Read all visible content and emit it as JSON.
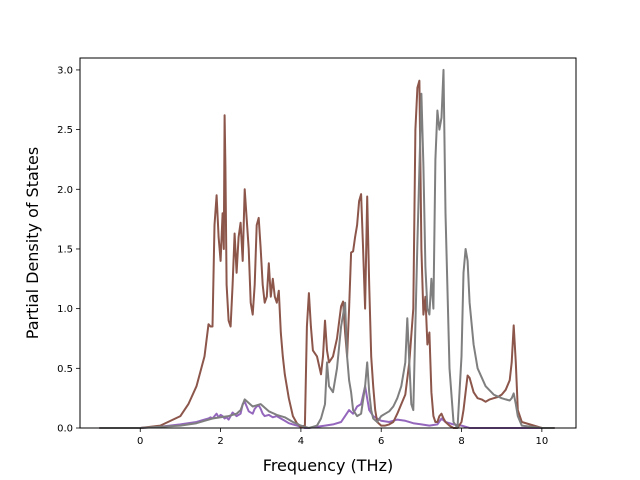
{
  "chart_data": {
    "type": "line",
    "title": "",
    "xlabel": "Frequency (THz)",
    "ylabel": "Partial Density of States",
    "xlim": [
      -1.5,
      10.85
    ],
    "ylim": [
      0,
      3.1
    ],
    "xticks": [
      0,
      2,
      4,
      6,
      8,
      10
    ],
    "xtick_labels": [
      "0",
      "2",
      "4",
      "6",
      "8",
      "10"
    ],
    "yticks": [
      0,
      0.5,
      1,
      1.5,
      2,
      2.5,
      3
    ],
    "ytick_labels": [
      "0.0",
      "0.5",
      "1.0",
      "1.5",
      "2.0",
      "2.5",
      "3.0"
    ],
    "grid": false,
    "legend": "none",
    "series": [
      {
        "color": "#9467bd",
        "x": [
          -1.0,
          0.0,
          0.5,
          1.0,
          1.4,
          1.6,
          1.7,
          1.75,
          1.8,
          1.85,
          1.9,
          1.95,
          2.0,
          2.05,
          2.1,
          2.15,
          2.2,
          2.25,
          2.3,
          2.4,
          2.5,
          2.55,
          2.6,
          2.65,
          2.7,
          2.8,
          2.85,
          2.9,
          2.95,
          3.0,
          3.05,
          3.1,
          3.2,
          3.3,
          3.4,
          3.5,
          3.6,
          3.7,
          3.8,
          3.9,
          4.0,
          4.1,
          4.2,
          4.4,
          4.6,
          4.8,
          5.0,
          5.1,
          5.2,
          5.3,
          5.4,
          5.5,
          5.6,
          5.7,
          5.8,
          6.0,
          6.2,
          6.4,
          6.6,
          6.8,
          7.0,
          7.2,
          7.4,
          7.5,
          7.6,
          7.8,
          8.0,
          8.2,
          8.4,
          8.6,
          8.8,
          9.0,
          9.2,
          9.3,
          9.4,
          9.6,
          10.0,
          10.3
        ],
        "values": [
          0,
          0,
          0.01,
          0.03,
          0.05,
          0.07,
          0.08,
          0.09,
          0.08,
          0.1,
          0.12,
          0.09,
          0.11,
          0.1,
          0.08,
          0.09,
          0.07,
          0.1,
          0.13,
          0.1,
          0.12,
          0.2,
          0.22,
          0.18,
          0.14,
          0.12,
          0.16,
          0.18,
          0.19,
          0.16,
          0.12,
          0.1,
          0.11,
          0.09,
          0.1,
          0.08,
          0.06,
          0.04,
          0.03,
          0.02,
          0.01,
          0.0,
          0.0,
          0.01,
          0.02,
          0.03,
          0.05,
          0.1,
          0.15,
          0.12,
          0.18,
          0.2,
          0.35,
          0.15,
          0.1,
          0.06,
          0.05,
          0.07,
          0.06,
          0.04,
          0.03,
          0.02,
          0.03,
          0.08,
          0.05,
          0.03,
          0.02,
          0.0,
          0.0,
          0.0,
          0.0,
          0.0,
          0.0,
          0.0,
          0.0,
          0.0,
          0.0,
          0.0
        ]
      },
      {
        "color": "#8c564b",
        "x": [
          -1.0,
          0.0,
          0.5,
          1.0,
          1.2,
          1.4,
          1.6,
          1.7,
          1.75,
          1.8,
          1.85,
          1.9,
          1.95,
          2.0,
          2.05,
          2.08,
          2.1,
          2.12,
          2.15,
          2.2,
          2.25,
          2.3,
          2.35,
          2.4,
          2.45,
          2.5,
          2.55,
          2.6,
          2.65,
          2.7,
          2.75,
          2.8,
          2.85,
          2.9,
          2.95,
          3.0,
          3.05,
          3.1,
          3.15,
          3.2,
          3.25,
          3.3,
          3.35,
          3.4,
          3.45,
          3.5,
          3.55,
          3.6,
          3.7,
          3.8,
          3.9,
          4.0,
          4.1,
          4.15,
          4.2,
          4.25,
          4.3,
          4.4,
          4.5,
          4.55,
          4.6,
          4.65,
          4.7,
          4.8,
          4.9,
          5.0,
          5.05,
          5.1,
          5.15,
          5.2,
          5.25,
          5.3,
          5.35,
          5.4,
          5.45,
          5.5,
          5.55,
          5.6,
          5.65,
          5.7,
          5.75,
          5.8,
          5.85,
          5.9,
          6.0,
          6.1,
          6.2,
          6.3,
          6.4,
          6.5,
          6.6,
          6.7,
          6.8,
          6.85,
          6.9,
          6.95,
          7.0,
          7.05,
          7.1,
          7.15,
          7.2,
          7.25,
          7.3,
          7.35,
          7.4,
          7.45,
          7.5,
          7.55,
          7.6,
          7.7,
          7.8,
          7.9,
          8.0,
          8.05,
          8.1,
          8.15,
          8.2,
          8.3,
          8.4,
          8.5,
          8.6,
          8.7,
          8.8,
          8.9,
          9.0,
          9.1,
          9.2,
          9.25,
          9.3,
          9.35,
          9.4,
          9.5,
          10.0,
          10.3
        ],
        "values": [
          0,
          0,
          0.02,
          0.1,
          0.2,
          0.35,
          0.6,
          0.87,
          0.85,
          0.85,
          1.7,
          1.95,
          1.6,
          1.4,
          1.8,
          1.5,
          2.62,
          2.2,
          1.2,
          0.9,
          0.85,
          1.2,
          1.63,
          1.3,
          1.6,
          1.72,
          1.4,
          2.0,
          1.75,
          1.5,
          1.05,
          0.95,
          1.2,
          1.7,
          1.76,
          1.5,
          1.2,
          1.05,
          1.1,
          1.38,
          1.1,
          1.25,
          1.1,
          1.05,
          1.15,
          0.8,
          0.6,
          0.45,
          0.25,
          0.1,
          0.04,
          0.01,
          0.02,
          0.85,
          1.13,
          0.85,
          0.65,
          0.6,
          0.45,
          0.6,
          0.9,
          0.65,
          0.55,
          0.6,
          0.75,
          1.02,
          1.06,
          0.8,
          0.6,
          1.0,
          1.47,
          1.48,
          1.6,
          1.7,
          1.9,
          1.96,
          1.5,
          1.0,
          1.94,
          1.2,
          0.6,
          0.35,
          0.15,
          0.05,
          0.02,
          0.02,
          0.03,
          0.05,
          0.12,
          0.2,
          0.28,
          0.55,
          1.0,
          2.5,
          2.85,
          2.91,
          1.5,
          0.95,
          1.1,
          0.7,
          0.8,
          0.3,
          0.1,
          0.05,
          0.05,
          0.1,
          0.12,
          0.08,
          0.05,
          0.02,
          0.0,
          0.0,
          0.05,
          0.15,
          0.3,
          0.44,
          0.42,
          0.3,
          0.25,
          0.24,
          0.22,
          0.24,
          0.25,
          0.26,
          0.28,
          0.32,
          0.4,
          0.55,
          0.86,
          0.55,
          0.15,
          0.05,
          0.0,
          0.0
        ]
      },
      {
        "color": "#7f7f7f",
        "x": [
          -1.0,
          0.0,
          0.5,
          1.0,
          1.4,
          1.6,
          1.8,
          2.0,
          2.2,
          2.4,
          2.5,
          2.6,
          2.8,
          3.0,
          3.2,
          3.4,
          3.6,
          3.8,
          4.0,
          4.1,
          4.2,
          4.3,
          4.4,
          4.5,
          4.6,
          4.65,
          4.7,
          4.8,
          4.9,
          5.0,
          5.05,
          5.1,
          5.15,
          5.2,
          5.25,
          5.3,
          5.4,
          5.5,
          5.6,
          5.65,
          5.7,
          5.75,
          5.8,
          5.9,
          6.0,
          6.1,
          6.2,
          6.3,
          6.4,
          6.5,
          6.6,
          6.65,
          6.7,
          6.75,
          6.8,
          6.9,
          7.0,
          7.05,
          7.1,
          7.15,
          7.2,
          7.25,
          7.3,
          7.35,
          7.4,
          7.45,
          7.5,
          7.55,
          7.6,
          7.7,
          7.8,
          7.9,
          8.0,
          8.05,
          8.1,
          8.15,
          8.2,
          8.3,
          8.4,
          8.6,
          8.8,
          9.0,
          9.1,
          9.2,
          9.25,
          9.3,
          9.35,
          9.4,
          9.5,
          10.0,
          10.3
        ],
        "values": [
          0,
          0,
          0.01,
          0.02,
          0.04,
          0.06,
          0.08,
          0.09,
          0.1,
          0.12,
          0.15,
          0.24,
          0.18,
          0.2,
          0.14,
          0.11,
          0.09,
          0.05,
          0.02,
          0.01,
          0.0,
          0.01,
          0.02,
          0.08,
          0.2,
          0.55,
          0.35,
          0.3,
          0.5,
          0.85,
          0.95,
          1.05,
          0.6,
          0.4,
          0.3,
          0.15,
          0.1,
          0.12,
          0.35,
          0.55,
          0.3,
          0.15,
          0.08,
          0.05,
          0.1,
          0.12,
          0.14,
          0.18,
          0.25,
          0.35,
          0.55,
          0.92,
          0.55,
          0.2,
          0.15,
          1.55,
          2.8,
          2.2,
          1.35,
          1.0,
          0.95,
          1.25,
          1.0,
          2.25,
          2.66,
          2.5,
          2.6,
          3.0,
          1.8,
          0.5,
          0.05,
          0.0,
          0.6,
          1.3,
          1.5,
          1.4,
          1.05,
          0.7,
          0.5,
          0.35,
          0.28,
          0.25,
          0.24,
          0.23,
          0.25,
          0.29,
          0.2,
          0.1,
          0.02,
          0.0,
          0.0
        ]
      }
    ]
  }
}
